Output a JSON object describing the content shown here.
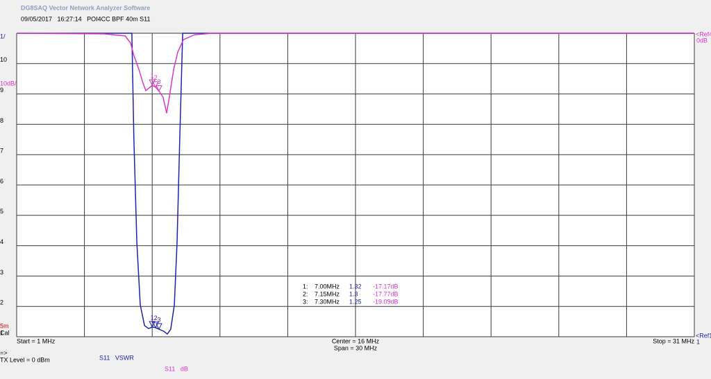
{
  "header": {
    "title": "DG8SAQ Vector Network Analyzer Software",
    "info": "09/05/2017   16:27:14   POI4CC BPF 40m S11"
  },
  "chart_data": {
    "type": "line",
    "xlim": [
      1,
      31
    ],
    "ylim": [
      1,
      11
    ],
    "yticks": [
      {
        "value": 11,
        "label": "1/"
      },
      10,
      9,
      8,
      7,
      6,
      5,
      4,
      3,
      2,
      1
    ],
    "y2lim": [
      -100,
      0
    ],
    "y2ticks": [
      {
        "value": 0,
        "label": "0dB"
      }
    ],
    "y2_scale_label": "10dB/",
    "ref_top": "<Ref4",
    "ref_bottom": "<Ref1",
    "ref_bottom_value": "1",
    "start_label": "Start = 1 MHz",
    "center_label": "Center = 16 MHz",
    "span_label": "Span = 30 MHz",
    "stop_label": "Stop = 31 MHz",
    "grid": true,
    "series": [
      {
        "name": "S11   VSWR",
        "color": "#2020b0",
        "axis": "y",
        "x": [
          1,
          6.1,
          6.19,
          6.32,
          6.47,
          6.66,
          6.84,
          7.0,
          7.15,
          7.3,
          7.51,
          7.67,
          7.82,
          7.98,
          8.1,
          8.22,
          8.35,
          31
        ],
        "values": [
          11,
          11,
          7.53,
          4.1,
          2.05,
          1.37,
          1.27,
          1.32,
          1.3,
          1.25,
          1.18,
          1.09,
          1.25,
          2.05,
          4.1,
          7.53,
          11,
          11
        ]
      },
      {
        "name": "S11   dB",
        "color": "#d838c8",
        "axis": "y2",
        "x": [
          1,
          4.87,
          5.8,
          6.04,
          6.19,
          6.41,
          6.59,
          6.72,
          6.87,
          7.0,
          7.15,
          7.3,
          7.48,
          7.64,
          7.76,
          7.95,
          8.13,
          8.38,
          8.87,
          9.63,
          31
        ],
        "values": [
          0,
          -0.2,
          -0.9,
          -3.2,
          -7.3,
          -11.9,
          -16.4,
          -18.9,
          -18.0,
          -17.17,
          -17.77,
          -19.09,
          -21,
          -26.3,
          -21,
          -11.9,
          -6.2,
          -2.1,
          -0.5,
          0,
          0
        ]
      }
    ],
    "markers": [
      {
        "name": "1",
        "row_label": "1:",
        "x": 7.0,
        "x_label": "7.00MHz",
        "vswr": 1.32,
        "db": -17.17,
        "db_label": "-17.17dB"
      },
      {
        "name": "2",
        "row_label": "2:",
        "x": 7.15,
        "x_label": "7.15MHz",
        "vswr": 1.3,
        "db": -17.77,
        "db_label": "-17.77dB"
      },
      {
        "name": "3",
        "row_label": "3:",
        "x": 7.3,
        "x_label": "7.30MHz",
        "vswr": 1.25,
        "db": -19.09,
        "db_label": "-19.09dB"
      }
    ]
  },
  "status": {
    "cal_mark": "5m",
    "cal": "Cal",
    "arrow": "=>",
    "tx_level": "TX Level = 0 dBm"
  }
}
